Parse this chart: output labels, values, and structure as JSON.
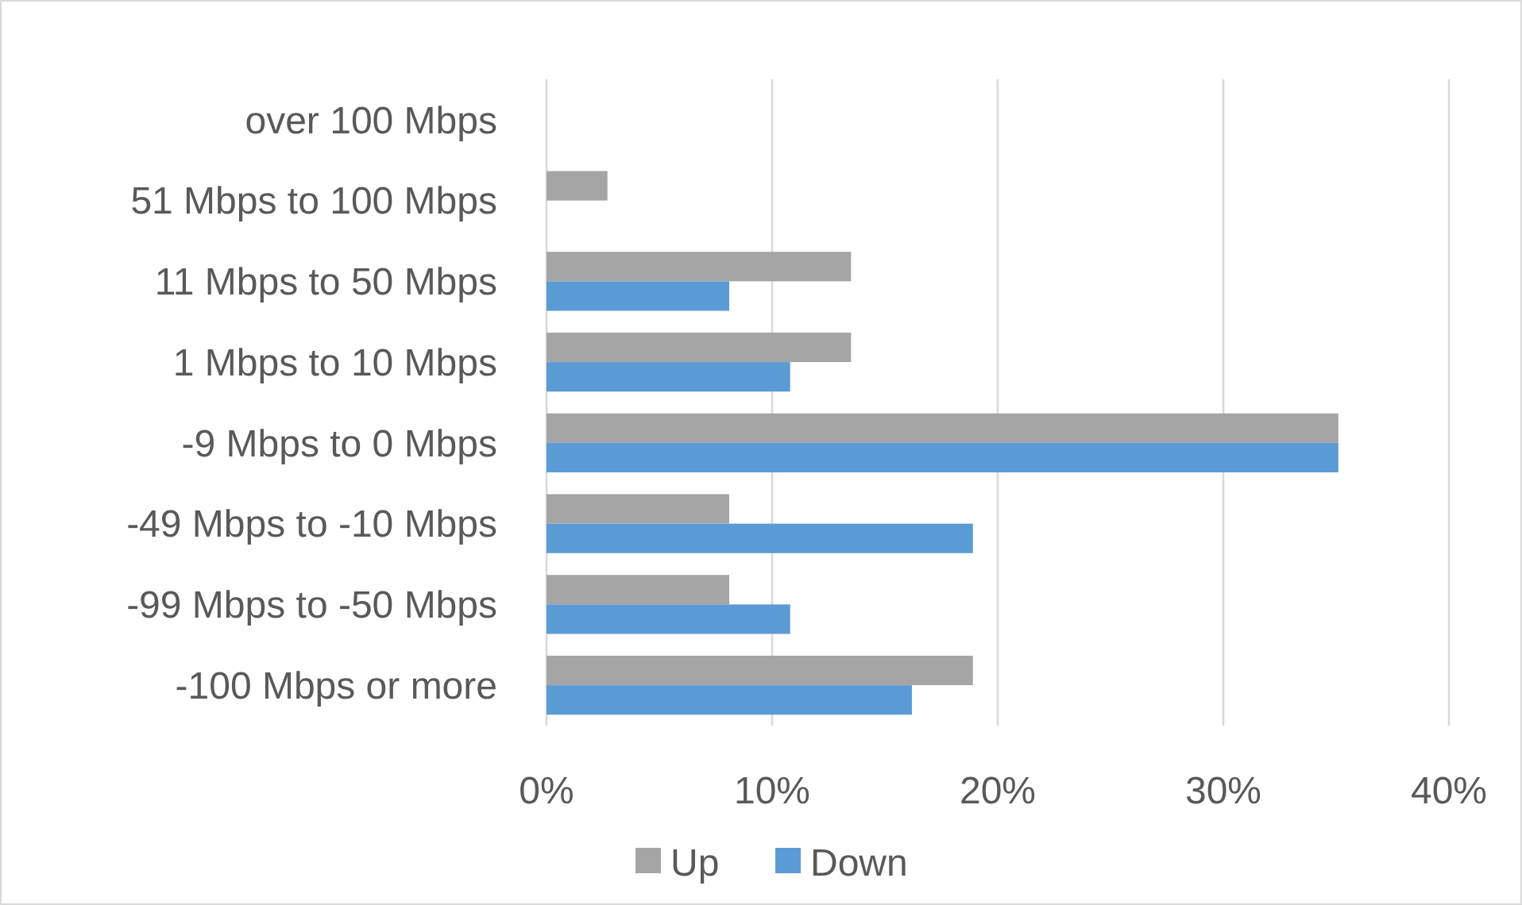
{
  "chart_data": {
    "type": "bar",
    "orientation": "horizontal",
    "categories": [
      "over 100 Mbps",
      "51 Mbps to 100 Mbps",
      "11 Mbps to 50 Mbps",
      "1 Mbps to 10 Mbps",
      "-9 Mbps to 0 Mbps",
      "-49 Mbps to -10 Mbps",
      "-99 Mbps to -50 Mbps",
      "-100 Mbps or more"
    ],
    "series": [
      {
        "name": "Up",
        "color": "#a5a5a5",
        "values": [
          null,
          2.7,
          13.5,
          13.5,
          35.1,
          8.1,
          8.1,
          18.9
        ]
      },
      {
        "name": "Down",
        "color": "#5b9bd5",
        "values": [
          null,
          null,
          8.1,
          10.8,
          35.1,
          18.9,
          10.8,
          16.2
        ]
      }
    ],
    "xlim": [
      0,
      40
    ],
    "xticks": [
      {
        "value": 0,
        "label": "0%"
      },
      {
        "value": 10,
        "label": "10%"
      },
      {
        "value": 20,
        "label": "20%"
      },
      {
        "value": 30,
        "label": "30%"
      },
      {
        "value": 40,
        "label": "40%"
      }
    ],
    "grid": "x",
    "legend": "bottom"
  }
}
